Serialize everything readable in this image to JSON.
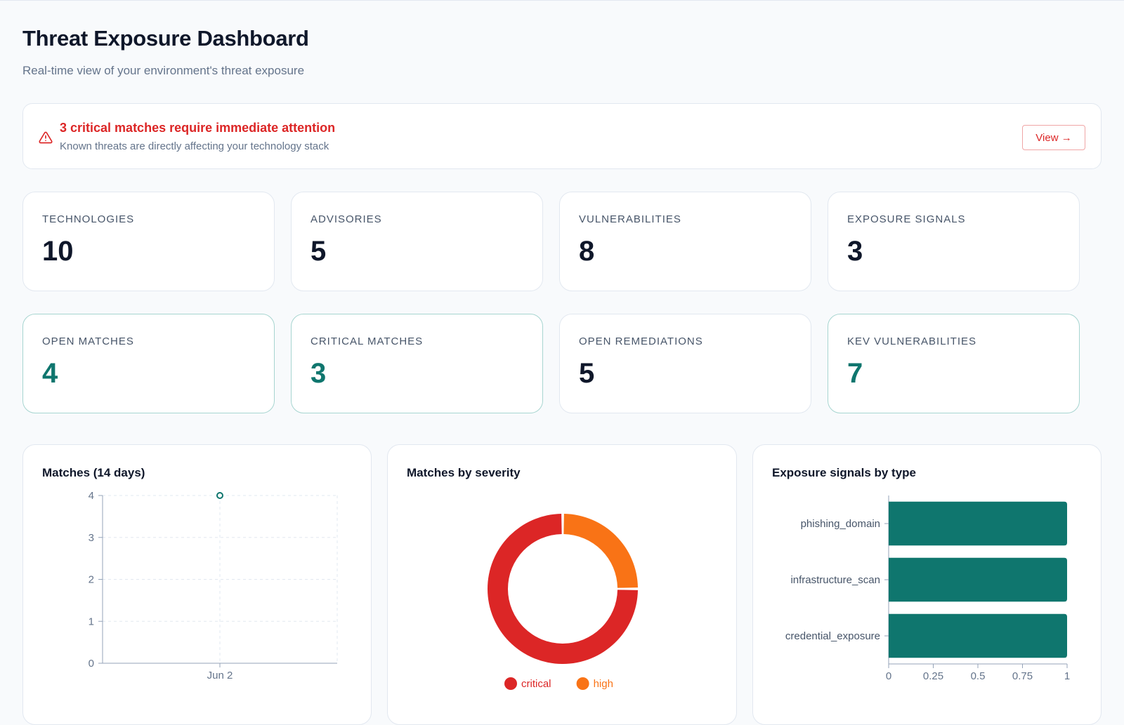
{
  "header": {
    "title": "Threat Exposure Dashboard",
    "subtitle": "Real-time view of your environment's threat exposure"
  },
  "alert": {
    "title": "3 critical matches require immediate attention",
    "description": "Known threats are directly affecting your technology stack",
    "button_label": "View →",
    "icon": "warning-triangle-icon"
  },
  "stats_row1": [
    {
      "label": "TECHNOLOGIES",
      "value": "10"
    },
    {
      "label": "ADVISORIES",
      "value": "5"
    },
    {
      "label": "VULNERABILITIES",
      "value": "8"
    },
    {
      "label": "EXPOSURE SIGNALS",
      "value": "3"
    }
  ],
  "stats_row2": [
    {
      "label": "OPEN MATCHES",
      "value": "4"
    },
    {
      "label": "CRITICAL MATCHES",
      "value": "3"
    },
    {
      "label": "OPEN REMEDIATIONS",
      "value": "5"
    },
    {
      "label": "KEV VULNERABILITIES",
      "value": "7"
    }
  ],
  "colors": {
    "teal": "#0f766e",
    "critical": "#dc2626",
    "high": "#f97316",
    "alert_red": "#dc2626"
  },
  "chart_data": [
    {
      "type": "line",
      "title": "Matches (14 days)",
      "x": [
        "Jun 2"
      ],
      "series": [
        {
          "values": [
            4
          ]
        }
      ],
      "ylim": [
        0,
        4
      ],
      "yticks": [
        "0",
        "1",
        "2",
        "3",
        "4"
      ],
      "grid": true
    },
    {
      "type": "pie",
      "title": "Matches by severity",
      "categories": [
        "critical",
        "high"
      ],
      "values": [
        3,
        1
      ],
      "legend": "bottom"
    },
    {
      "type": "bar",
      "orientation": "horizontal",
      "title": "Exposure signals by type",
      "categories": [
        "phishing_domain",
        "infrastructure_scan",
        "credential_exposure"
      ],
      "values": [
        1,
        1,
        1
      ],
      "xlim": [
        0,
        1
      ],
      "xticks": [
        "0",
        "0.25",
        "0.5",
        "0.75",
        "1"
      ]
    }
  ]
}
